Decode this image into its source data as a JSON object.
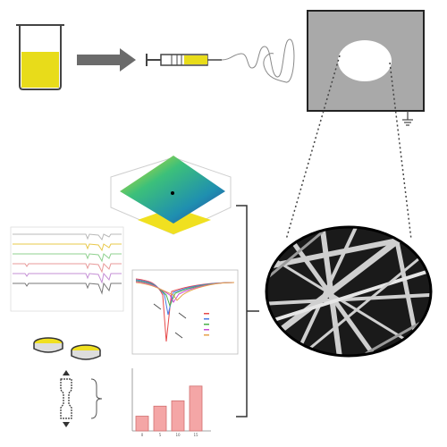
{
  "palette": {
    "solution": "#e8dc1a",
    "arrow": "#6b6b6b",
    "collector": "#a9a9a9",
    "outline": "#222222",
    "bar_fill": "#f4a6a6",
    "bar_stroke": "#d07070"
  },
  "ftir": {
    "legend_labels": [
      "",
      "",
      "",
      "",
      "",
      ""
    ],
    "colors": [
      "#b8b8b8",
      "#e8c84a",
      "#8fd18f",
      "#e89a9a",
      "#c58fd6",
      "#777777"
    ]
  },
  "dsc": {
    "legend_labels": [
      "",
      "",
      "",
      "",
      ""
    ],
    "colors": [
      "#e64a4a",
      "#4a7ae6",
      "#4ab04a",
      "#c94ad6",
      "#e6a24a"
    ]
  },
  "bar_chart": {
    "values": [
      25,
      42,
      51,
      76
    ],
    "ylim": [
      0,
      100
    ],
    "ticks": [
      "0",
      "5",
      "10",
      "15"
    ]
  },
  "icons": {
    "beaker": "beaker-icon",
    "syringe": "syringe-icon",
    "fibers": "nanofiber-sem-icon",
    "petri": "petri-dish-icon",
    "dumbbell": "tensile-specimen-icon",
    "surface": "3d-surface-icon"
  }
}
